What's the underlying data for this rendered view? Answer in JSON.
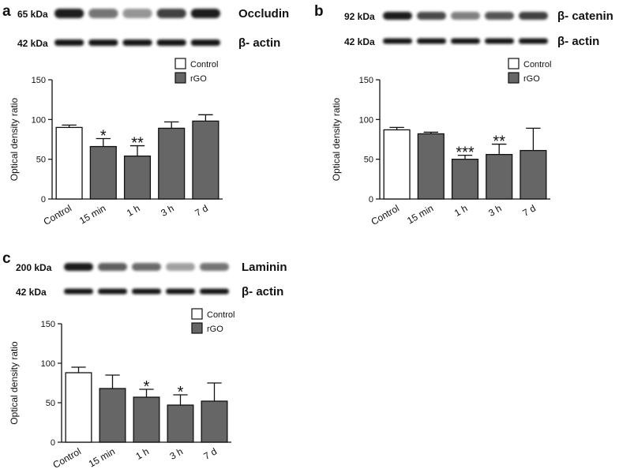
{
  "colors": {
    "control": "#ffffff",
    "rgo": "#666666",
    "stroke": "#111111"
  },
  "chart_data": [
    {
      "panel": "a",
      "type": "bar",
      "blots": [
        {
          "kda": "65 kDa",
          "protein": "Occludin",
          "intensity": [
            0.95,
            0.55,
            0.4,
            0.8,
            0.95
          ]
        },
        {
          "kda": "42 kDa",
          "protein": "β- actin",
          "intensity": [
            1,
            1,
            1,
            1,
            1
          ]
        }
      ],
      "categories": [
        "Control",
        "15 min",
        "1 h",
        "3 h",
        "7 d"
      ],
      "series": [
        {
          "name": "Control",
          "color": "#ffffff",
          "indices": [
            0
          ]
        },
        {
          "name": "rGO",
          "color": "#666666",
          "indices": [
            1,
            2,
            3,
            4
          ]
        }
      ],
      "values": [
        90,
        66,
        54,
        89,
        98
      ],
      "errors": [
        3,
        10,
        13,
        8,
        8
      ],
      "significance": [
        "",
        "*",
        "**",
        "",
        ""
      ],
      "ylabel": "Optical density ratio",
      "ylim": [
        0,
        150
      ],
      "yticks": [
        "0",
        "50",
        "100",
        "150"
      ],
      "legend": [
        "Control",
        "rGO"
      ]
    },
    {
      "panel": "b",
      "type": "bar",
      "blots": [
        {
          "kda": "92 kDa",
          "protein": "β- catenin",
          "intensity": [
            0.95,
            0.75,
            0.5,
            0.7,
            0.8
          ]
        },
        {
          "kda": "42 kDa",
          "protein": "β- actin",
          "intensity": [
            1,
            1,
            1,
            1,
            1
          ]
        }
      ],
      "categories": [
        "Control",
        "15 min",
        "1 h",
        "3 h",
        "7 d"
      ],
      "series": [
        {
          "name": "Control",
          "color": "#ffffff",
          "indices": [
            0
          ]
        },
        {
          "name": "rGO",
          "color": "#666666",
          "indices": [
            1,
            2,
            3,
            4
          ]
        }
      ],
      "values": [
        87,
        82,
        50,
        56,
        61
      ],
      "errors": [
        3,
        2,
        5,
        13,
        28
      ],
      "significance": [
        "",
        "",
        "***",
        "**",
        ""
      ],
      "ylabel": "Optical density ratio",
      "ylim": [
        0,
        150
      ],
      "yticks": [
        "0",
        "50",
        "100",
        "150"
      ],
      "legend": [
        "Control",
        "rGO"
      ]
    },
    {
      "panel": "c",
      "type": "bar",
      "blots": [
        {
          "kda": "200 kDa",
          "protein": "Laminin",
          "intensity": [
            0.95,
            0.65,
            0.6,
            0.35,
            0.55
          ]
        },
        {
          "kda": "42 kDa",
          "protein": "β- actin",
          "intensity": [
            1,
            1,
            1,
            1,
            1
          ]
        }
      ],
      "categories": [
        "Control",
        "15 min",
        "1 h",
        "3 h",
        "7 d"
      ],
      "series": [
        {
          "name": "Control",
          "color": "#ffffff",
          "indices": [
            0
          ]
        },
        {
          "name": "rGO",
          "color": "#666666",
          "indices": [
            1,
            2,
            3,
            4
          ]
        }
      ],
      "values": [
        88,
        68,
        57,
        47,
        52
      ],
      "errors": [
        7,
        17,
        10,
        13,
        23
      ],
      "significance": [
        "",
        "",
        "*",
        "*",
        ""
      ],
      "ylabel": "Optical density ratio",
      "ylim": [
        0,
        150
      ],
      "yticks": [
        "0",
        "50",
        "100",
        "150"
      ],
      "legend": [
        "Control",
        "rGO"
      ]
    }
  ]
}
